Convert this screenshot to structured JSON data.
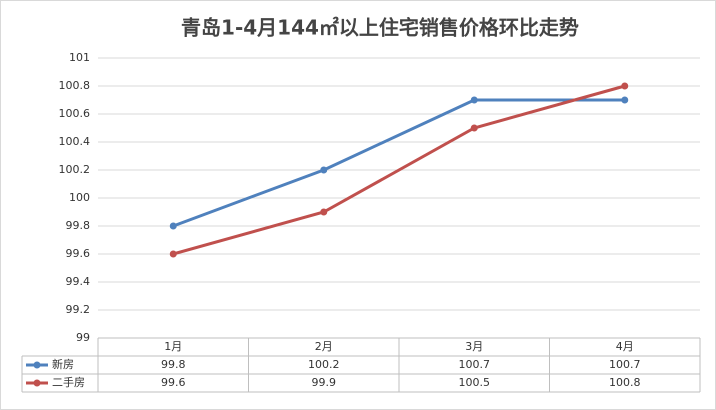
{
  "chart_data": {
    "type": "line",
    "title": "青岛1-4月144㎡以上住宅销售价格环比走势",
    "categories": [
      "1月",
      "2月",
      "3月",
      "4月"
    ],
    "series": [
      {
        "name": "新房",
        "color": "#4f81bd",
        "values": [
          99.8,
          100.2,
          100.7,
          100.7
        ]
      },
      {
        "name": "二手房",
        "color": "#c0504d",
        "values": [
          99.6,
          99.9,
          100.5,
          100.8
        ]
      }
    ],
    "ylim": [
      99,
      101
    ],
    "yticks": [
      99,
      99.2,
      99.4,
      99.6,
      99.8,
      100,
      100.2,
      100.4,
      100.6,
      100.8,
      101
    ],
    "grid": true
  }
}
